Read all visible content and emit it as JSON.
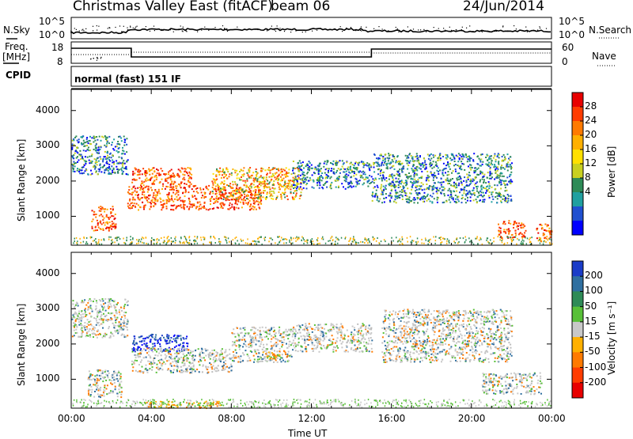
{
  "header": {
    "station": "Christmas Valley East (fitACF)",
    "beam": "beam 06",
    "date": "24/Jun/2014"
  },
  "panels": {
    "nsky_label": "N.Sky",
    "nsky_ticks": [
      "10^5",
      "10^0"
    ],
    "nsearch_label": "N.Search",
    "nsearch_ticks": [
      "10^5",
      "10^0"
    ],
    "freq_label_1": "Freq.",
    "freq_label_2": "[MHz]",
    "freq_ticks": [
      "18",
      "8"
    ],
    "nave_label": "Nave",
    "nave_ticks": [
      "60",
      "0"
    ],
    "cpid_label": "CPID",
    "cpid_value": "normal (fast) 151 IF"
  },
  "chart_data": [
    {
      "type": "heatmap",
      "name": "power",
      "ylabel": "Slant Range [km]",
      "yticks": [
        "4000",
        "3000",
        "2000",
        "1000"
      ],
      "ylim": [
        180,
        4600
      ],
      "xlim": [
        0,
        24
      ],
      "colorbar": {
        "label": "Power [dB]",
        "ticks": [
          "28",
          "24",
          "20",
          "16",
          "12",
          "8",
          "4"
        ],
        "colors": [
          "#e80000",
          "#ff3c00",
          "#ff7a00",
          "#ffb000",
          "#ffe000",
          "#c8d020",
          "#2e8b57",
          "#20a0a0",
          "#2050d0",
          "#0000ff"
        ]
      },
      "regions_hours_km": [
        {
          "x": [
            0.0,
            2.8
          ],
          "y": [
            2200,
            3300
          ],
          "level": "low"
        },
        {
          "x": [
            1.0,
            2.2
          ],
          "y": [
            600,
            1300
          ],
          "level": "high"
        },
        {
          "x": [
            2.8,
            9.5
          ],
          "y": [
            1200,
            1900
          ],
          "level": "high"
        },
        {
          "x": [
            3.0,
            6.0
          ],
          "y": [
            1900,
            2400
          ],
          "level": "high"
        },
        {
          "x": [
            7.0,
            11.5
          ],
          "y": [
            1500,
            2400
          ],
          "level": "mid"
        },
        {
          "x": [
            11.0,
            15.0
          ],
          "y": [
            1800,
            2600
          ],
          "level": "low"
        },
        {
          "x": [
            15.0,
            22.0
          ],
          "y": [
            1400,
            2800
          ],
          "level": "low"
        },
        {
          "x": [
            21.3,
            22.7
          ],
          "y": [
            400,
            900
          ],
          "level": "high"
        },
        {
          "x": [
            23.2,
            24.0
          ],
          "y": [
            300,
            800
          ],
          "level": "high"
        }
      ]
    },
    {
      "type": "heatmap",
      "name": "velocity",
      "ylabel": "Slant Range [km]",
      "yticks": [
        "4000",
        "3000",
        "2000",
        "1000"
      ],
      "ylim": [
        180,
        4600
      ],
      "xlim": [
        0,
        24
      ],
      "xticks": [
        "00:00",
        "04:00",
        "08:00",
        "12:00",
        "16:00",
        "20:00",
        "00:00"
      ],
      "xlabel": "Time UT",
      "colorbar": {
        "label": "Velocity [m s⁻¹]",
        "ticks": [
          "200",
          "100",
          "50",
          "15",
          "-15",
          "-50",
          "-100",
          "-200"
        ],
        "colors": [
          "#1a3cc8",
          "#2f6fa0",
          "#2e8b57",
          "#58c038",
          "#c8c8c8",
          "#ffb000",
          "#ff7a00",
          "#ff3c00",
          "#e80000"
        ]
      },
      "regions_hours_km": [
        {
          "x": [
            0.0,
            2.8
          ],
          "y": [
            2200,
            3300
          ],
          "level": "gray"
        },
        {
          "x": [
            0.8,
            2.5
          ],
          "y": [
            500,
            1300
          ],
          "level": "gray"
        },
        {
          "x": [
            3.0,
            5.8
          ],
          "y": [
            1800,
            2300
          ],
          "level": "toward"
        },
        {
          "x": [
            3.0,
            8.0
          ],
          "y": [
            1200,
            1900
          ],
          "level": "gray"
        },
        {
          "x": [
            8.0,
            11.0
          ],
          "y": [
            1500,
            2500
          ],
          "level": "gray"
        },
        {
          "x": [
            9.5,
            10.5
          ],
          "y": [
            1600,
            1800
          ],
          "level": "away"
        },
        {
          "x": [
            11.0,
            15.0
          ],
          "y": [
            1800,
            2600
          ],
          "level": "gray"
        },
        {
          "x": [
            15.5,
            22.0
          ],
          "y": [
            1500,
            3000
          ],
          "level": "gray"
        },
        {
          "x": [
            20.5,
            23.5
          ],
          "y": [
            600,
            1200
          ],
          "level": "gray"
        },
        {
          "x": [
            3.5,
            7.5
          ],
          "y": [
            200,
            400
          ],
          "level": "away"
        }
      ]
    }
  ]
}
